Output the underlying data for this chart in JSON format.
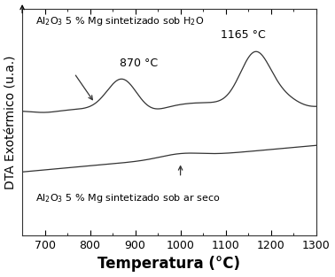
{
  "title": "",
  "xlabel": "Temperatura (°C)",
  "ylabel": "DTA Exotérmico (u.a.)",
  "xlim": [
    650,
    1300
  ],
  "ylim": [
    0,
    10
  ],
  "xticks": [
    700,
    800,
    900,
    1000,
    1100,
    1200,
    1300
  ],
  "background_color": "#ffffff",
  "line_color": "#333333",
  "label_h2o_1": "Al",
  "label_h2o_sub1": "2",
  "label_h2o_2": "O",
  "label_h2o_sub2": "3",
  "label_h2o_3": " 5 % Mg sintetizado sob H",
  "label_h2o_sub3": "2",
  "label_h2o_4": "O",
  "label_seco_1": "Al",
  "label_seco_sub1": "2",
  "label_seco_2": "O",
  "label_seco_sub2": "3",
  "label_seco_3": " 5 % Mg sintetizado sob ar seco",
  "annot_870": "870 °C",
  "annot_1165": "1165 °C",
  "arrow_color": "#333333",
  "xlabel_fontsize": 12,
  "ylabel_fontsize": 10,
  "tick_fontsize": 9,
  "annot_fontsize": 9,
  "label_fontsize": 8
}
